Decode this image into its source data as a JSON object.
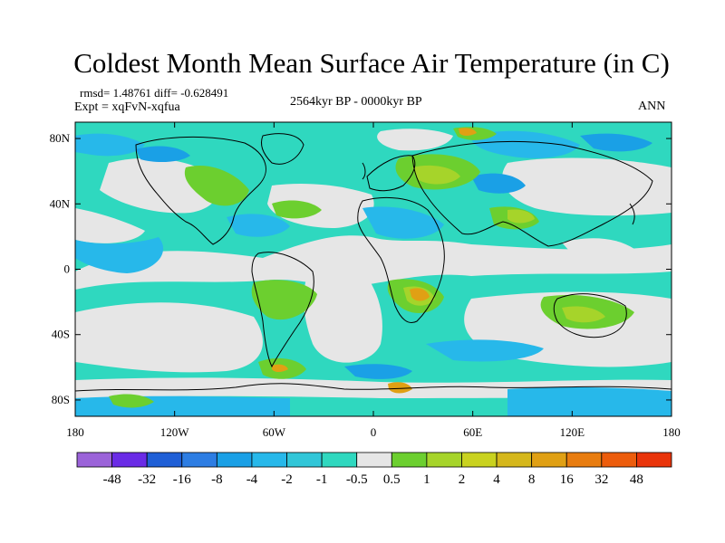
{
  "figure": {
    "title": "Coldest Month Mean Surface Air Temperature (in C)",
    "stats": "rmsd= 1.48761 diff= -0.628491",
    "experiment": "Expt = xqFvN-xqfua",
    "period": "2564kyr BP - 0000kyr BP",
    "season": "ANN"
  },
  "axes": {
    "lat_labels": [
      {
        "lat": 80,
        "label": "80N"
      },
      {
        "lat": 40,
        "label": "40N"
      },
      {
        "lat": 0,
        "label": "0"
      },
      {
        "lat": -40,
        "label": "40S"
      },
      {
        "lat": -80,
        "label": "80S"
      }
    ],
    "lon_labels": [
      {
        "lon": -180,
        "label": "180"
      },
      {
        "lon": -120,
        "label": "120W"
      },
      {
        "lon": -60,
        "label": "60W"
      },
      {
        "lon": 0,
        "label": "0"
      },
      {
        "lon": 60,
        "label": "60E"
      },
      {
        "lon": 120,
        "label": "120E"
      },
      {
        "lon": 180,
        "label": "180"
      }
    ],
    "lon_range": [
      -180,
      180
    ],
    "lat_range": [
      -90,
      90
    ]
  },
  "colorbar": {
    "colors": [
      "#9b63d9",
      "#6a2be6",
      "#1f5fd6",
      "#2d7de3",
      "#1aa0e6",
      "#27b8ea",
      "#31c6d8",
      "#2fd8bf",
      "#e6e6e6",
      "#6ccf2f",
      "#a6d42a",
      "#c9d21f",
      "#d5b71b",
      "#e0a014",
      "#e87c0f",
      "#ec5c0c",
      "#e9340a"
    ],
    "labels": [
      "-48",
      "-32",
      "-16",
      "-8",
      "-4",
      "-2",
      "-1",
      "-0.5",
      "0.5",
      "1",
      "2",
      "4",
      "8",
      "16",
      "32",
      "48"
    ]
  },
  "map_colors": {
    "background": "#2fd8bf",
    "neutral": "#e6e6e6",
    "light_blue": "#27b8ea",
    "mid_blue": "#1aa0e6",
    "green": "#6ccf2f",
    "yellow_green": "#a6d42a",
    "orange": "#e0a014",
    "coast": "#000000"
  }
}
